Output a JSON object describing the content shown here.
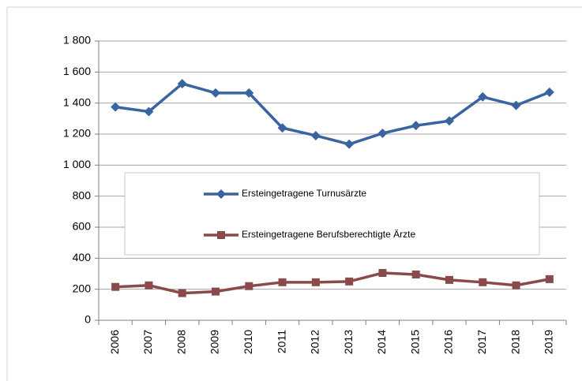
{
  "chart_data": {
    "type": "line",
    "categories": [
      "2006",
      "2007",
      "2008",
      "2009",
      "2010",
      "2011",
      "2012",
      "2013",
      "2014",
      "2015",
      "2016",
      "2017",
      "2018",
      "2019"
    ],
    "series": [
      {
        "name": "Ersteingetragene Turnusärzte",
        "color": "#3a64a0",
        "marker": "diamond",
        "values": [
          1375,
          1345,
          1525,
          1465,
          1465,
          1240,
          1190,
          1135,
          1205,
          1255,
          1285,
          1440,
          1385,
          1470
        ]
      },
      {
        "name": "Ersteingetragene Berufsberechtigte Ärzte",
        "color": "#8b4a4a",
        "marker": "square",
        "values": [
          215,
          225,
          175,
          185,
          220,
          245,
          245,
          250,
          305,
          295,
          260,
          245,
          225,
          265
        ]
      }
    ],
    "ylim": [
      0,
      1800
    ],
    "yticks": [
      0,
      200,
      400,
      600,
      800,
      {
        "value": 1000,
        "label": "1 000"
      },
      {
        "value": 1200,
        "label": "1 200"
      },
      {
        "value": 1400,
        "label": "1 400"
      },
      {
        "value": 1600,
        "label": "1 600"
      },
      {
        "value": 1800,
        "label": "1 800"
      }
    ],
    "grid": true
  }
}
